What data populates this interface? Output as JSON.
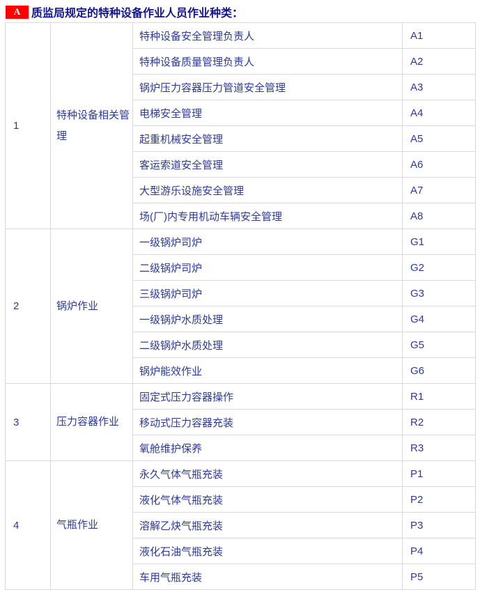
{
  "header": {
    "badge": "A",
    "title": "质监局规定的特种设备作业人员作业种类："
  },
  "colors": {
    "badge_bg": "#ff0000",
    "badge_text": "#ffffff",
    "title_text": "#14148c",
    "table_text": "#2d3a97",
    "table_border": "#d9d9d9",
    "background": "#ffffff"
  },
  "table": {
    "groups": [
      {
        "no": "1",
        "category": "特种设备相关管理",
        "items": [
          {
            "name": "特种设备安全管理负责人",
            "code": "A1"
          },
          {
            "name": "特种设备质量管理负责人",
            "code": "A2"
          },
          {
            "name": "锅炉压力容器压力管道安全管理",
            "code": "A3"
          },
          {
            "name": "电梯安全管理",
            "code": "A4"
          },
          {
            "name": "起重机械安全管理",
            "code": "A5"
          },
          {
            "name": "客运索道安全管理",
            "code": "A6"
          },
          {
            "name": "大型游乐设施安全管理",
            "code": "A7"
          },
          {
            "name": "场(厂)内专用机动车辆安全管理",
            "code": "A8"
          }
        ]
      },
      {
        "no": "2",
        "category": "锅炉作业",
        "items": [
          {
            "name": "一级锅炉司炉",
            "code": "G1"
          },
          {
            "name": "二级锅炉司炉",
            "code": "G2"
          },
          {
            "name": "三级锅炉司炉",
            "code": "G3"
          },
          {
            "name": "一级锅炉水质处理",
            "code": "G4"
          },
          {
            "name": "二级锅炉水质处理",
            "code": "G5"
          },
          {
            "name": "锅炉能效作业",
            "code": "G6"
          }
        ]
      },
      {
        "no": "3",
        "category": "压力容器作业",
        "items": [
          {
            "name": "固定式压力容器操作",
            "code": "R1"
          },
          {
            "name": "移动式压力容器充装",
            "code": "R2"
          },
          {
            "name": "氧舱维护保养",
            "code": "R3"
          }
        ]
      },
      {
        "no": "4",
        "category": "气瓶作业",
        "items": [
          {
            "name": "永久气体气瓶充装",
            "code": "P1"
          },
          {
            "name": "液化气体气瓶充装",
            "code": "P2"
          },
          {
            "name": "溶解乙炔气瓶充装",
            "code": "P3"
          },
          {
            "name": "液化石油气瓶充装",
            "code": "P4"
          },
          {
            "name": "车用气瓶充装",
            "code": "P5"
          }
        ]
      }
    ]
  }
}
